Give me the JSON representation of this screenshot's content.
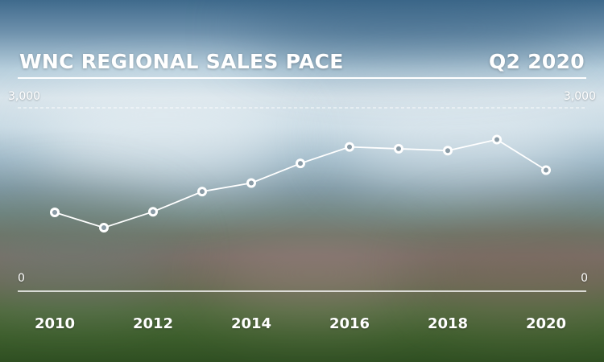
{
  "chart_data": {
    "type": "line",
    "title": "WNC REGIONAL SALES PACE",
    "subtitle": "Q2 2020",
    "x": [
      2010,
      2011,
      2012,
      2013,
      2014,
      2015,
      2016,
      2017,
      2018,
      2019,
      2020
    ],
    "series": [
      {
        "values": [
          1290,
          1040,
          1300,
          1630,
          1770,
          2090,
          2360,
          2330,
          2300,
          2480,
          1980
        ]
      }
    ],
    "ylim": [
      0,
      3000
    ],
    "yticks": {
      "top": "3,000",
      "bottom": "0"
    },
    "xticks": [
      "2010",
      "2012",
      "2014",
      "2016",
      "2018",
      "2020"
    ],
    "xtick_values": [
      2010,
      2012,
      2014,
      2016,
      2018,
      2020
    ],
    "grid": "dashed line at maximum",
    "colors": {
      "line": "#ffffff",
      "marker_fill": "#ffffff",
      "marker_center": "#8a9ba6"
    }
  }
}
